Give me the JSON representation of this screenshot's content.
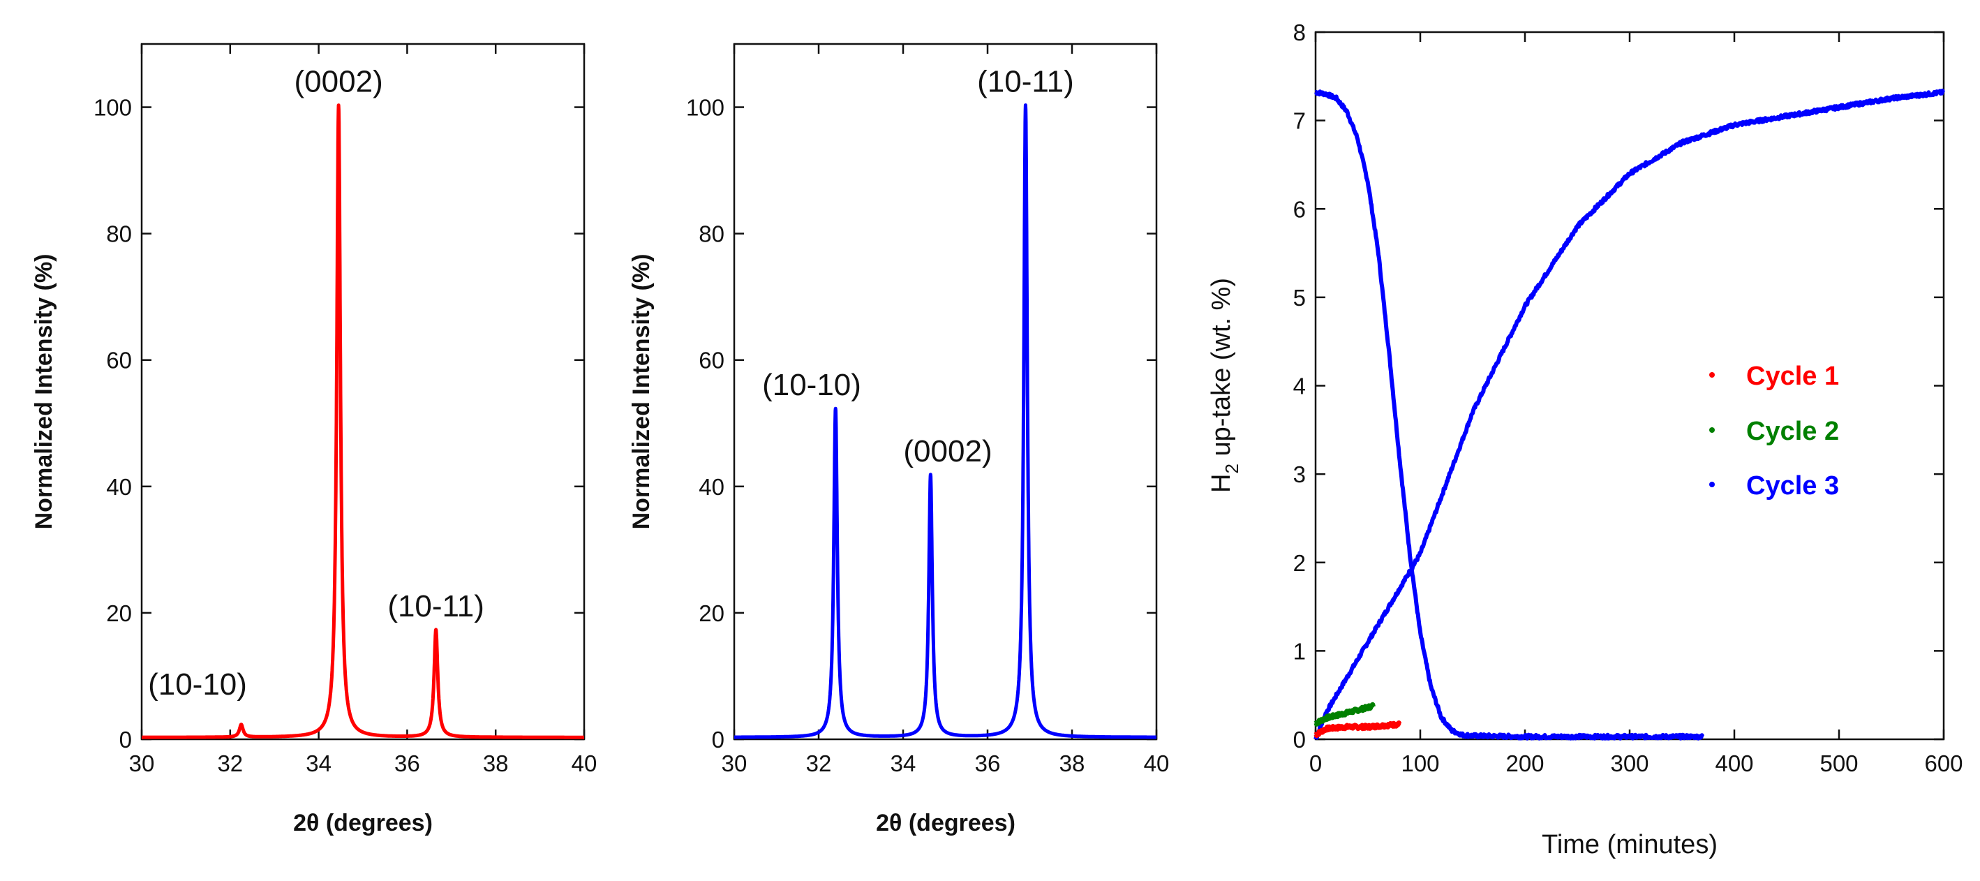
{
  "chart_data": [
    {
      "id": "xrd-red",
      "type": "line",
      "title": "",
      "xlabel": "2θ (degrees)",
      "xlabel_theta": "θ",
      "xlabel_rest": " (degrees)",
      "ylabel": "Normalized Intensity (%)",
      "xlim": [
        30,
        40
      ],
      "ylim": [
        0,
        110
      ],
      "xticks": [
        30,
        32,
        34,
        36,
        38,
        40
      ],
      "yticks": [
        0,
        20,
        40,
        60,
        80,
        100
      ],
      "color": "#ff0000",
      "series": [
        {
          "name": "XRD pattern",
          "peaks": [
            {
              "label": "(10-10)",
              "x": 32.25,
              "value": 2
            },
            {
              "label": "(0002)",
              "x": 34.45,
              "value": 100
            },
            {
              "label": "(10-11)",
              "x": 36.65,
              "value": 17
            }
          ]
        }
      ]
    },
    {
      "id": "xrd-blue",
      "type": "line",
      "title": "",
      "xlabel": "2θ (degrees)",
      "xlabel_theta": "θ",
      "xlabel_rest": " (degrees)",
      "ylabel": "Normalized Intensity (%)",
      "xlim": [
        30,
        40
      ],
      "ylim": [
        0,
        110
      ],
      "xticks": [
        30,
        32,
        34,
        36,
        38,
        40
      ],
      "yticks": [
        0,
        20,
        40,
        60,
        80,
        100
      ],
      "color": "#0000ff",
      "series": [
        {
          "name": "XRD pattern",
          "peaks": [
            {
              "label": "(10-10)",
              "x": 32.4,
              "value": 52
            },
            {
              "label": "(0002)",
              "x": 34.65,
              "value": 41.5
            },
            {
              "label": "(10-11)",
              "x": 36.9,
              "value": 100
            }
          ]
        }
      ]
    },
    {
      "id": "h2-uptake",
      "type": "scatter",
      "title": "",
      "xlabel": "Time (minutes)",
      "ylabel": "H2 up-take (wt. %)",
      "ylabel_main": "H",
      "ylabel_sub": "2",
      "ylabel_rest": " up-take (wt. %)",
      "xlim": [
        0,
        600
      ],
      "ylim": [
        0,
        8
      ],
      "xticks": [
        0,
        100,
        200,
        300,
        400,
        500,
        600
      ],
      "yticks": [
        0,
        1,
        2,
        3,
        4,
        5,
        6,
        7,
        8
      ],
      "legend_position": "center-right",
      "series": [
        {
          "name": "Cycle 1",
          "color": "#ff0000",
          "x": [
            0,
            10,
            20,
            30,
            40,
            50,
            60,
            70,
            80
          ],
          "y": [
            0.05,
            0.12,
            0.13,
            0.14,
            0.14,
            0.14,
            0.15,
            0.16,
            0.17
          ]
        },
        {
          "name": "Cycle 2",
          "color": "#008000",
          "x": [
            0,
            10,
            20,
            30,
            40,
            50,
            55
          ],
          "y": [
            0.18,
            0.24,
            0.27,
            0.3,
            0.33,
            0.36,
            0.38
          ]
        },
        {
          "name": "Cycle 3",
          "color": "#0000ff",
          "desorption": {
            "x": [
              0,
              10,
              20,
              30,
              40,
              50,
              60,
              70,
              80,
              90,
              100,
              110,
              120,
              130,
              140,
              150,
              200,
              250,
              300,
              370
            ],
            "y": [
              7.32,
              7.3,
              7.25,
              7.1,
              6.8,
              6.3,
              5.5,
              4.4,
              3.2,
              2.1,
              1.2,
              0.6,
              0.25,
              0.1,
              0.05,
              0.04,
              0.03,
              0.03,
              0.03,
              0.03
            ]
          },
          "absorption": {
            "x": [
              0,
              10,
              25,
              50,
              75,
              100,
              125,
              150,
              175,
              200,
              250,
              300,
              350,
              400,
              450,
              500,
              550,
              600
            ],
            "y": [
              0.0,
              0.3,
              0.6,
              1.1,
              1.6,
              2.1,
              2.9,
              3.7,
              4.3,
              4.9,
              5.8,
              6.4,
              6.75,
              6.95,
              7.05,
              7.15,
              7.25,
              7.32
            ]
          }
        }
      ]
    }
  ]
}
